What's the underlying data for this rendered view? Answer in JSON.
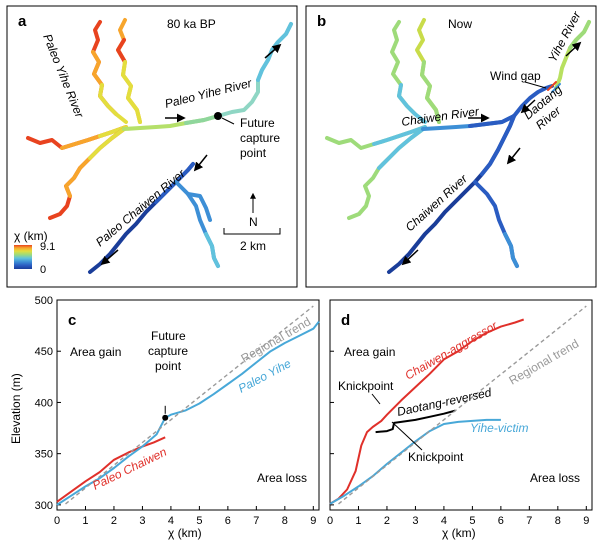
{
  "colors": {
    "scale": [
      "#1a3d99",
      "#2a5cc2",
      "#3d8fd6",
      "#61c2dd",
      "#9edb7a",
      "#e3de3e",
      "#f7a52c",
      "#e8431f"
    ],
    "red": "#e0302a",
    "blue": "#48a8d8",
    "black": "#000000",
    "gray": "#9a9a9a"
  },
  "panel_a": {
    "label": "a",
    "time": "80 ka BP",
    "paleo_yihe_left": "Paleo Yihe River",
    "paleo_yihe_right": "Paleo Yihe River",
    "paleo_chaiwen": "Paleo Chaiwen River",
    "capture": [
      "Future",
      "capture",
      "point"
    ],
    "north": "N",
    "scale": "2 km",
    "legend_title": "χ (km)",
    "legend_max": "9.1",
    "legend_min": "0"
  },
  "panel_b": {
    "label": "b",
    "time": "Now",
    "yihe": "Yihe River",
    "wind_gap": "Wind gap",
    "chaiwen_upper": "Chaiwen River",
    "chaiwen_lower": "Chaiwen River",
    "daotang": [
      "Daotang",
      "River"
    ]
  },
  "chart_data": [
    {
      "type": "line",
      "panel": "c",
      "ylabel": "Elevation (m)",
      "xlabel": "χ (km)",
      "xlim": [
        0,
        9.2
      ],
      "ylim": [
        295,
        500
      ],
      "xticks": [
        "0",
        "1",
        "2",
        "3",
        "4",
        "5",
        "6",
        "7",
        "8",
        "9"
      ],
      "yticks": [
        "300",
        "350",
        "400",
        "450",
        "500"
      ],
      "annotations": {
        "area_gain": "Area gain",
        "area_loss": "Area loss",
        "regional_trend": "Regional trend",
        "capture": [
          "Future",
          "capture",
          "point"
        ]
      },
      "series": [
        {
          "name": "Paleo Chaiwen",
          "color": "red",
          "x": [
            0,
            0.5,
            1.0,
            1.5,
            2.0,
            2.5,
            3.0,
            3.4,
            3.8
          ],
          "y": [
            303,
            313,
            323,
            332,
            344,
            351,
            357,
            361,
            366
          ]
        },
        {
          "name": "Paleo Yihe",
          "color": "blue",
          "x": [
            0,
            0.5,
            1.0,
            1.5,
            2.0,
            2.5,
            3.0,
            3.5,
            3.8,
            4.0,
            4.5,
            5.0,
            5.5,
            6.0,
            6.5,
            7.0,
            7.5,
            8.0,
            8.5,
            9.0,
            9.2
          ],
          "y": [
            300,
            309,
            318,
            326,
            336,
            347,
            357,
            369,
            385,
            388,
            392,
            399,
            408,
            418,
            428,
            439,
            450,
            458,
            465,
            472,
            479
          ]
        },
        {
          "name": "Regional trend",
          "color": "gray",
          "x": [
            0.3,
            9.0
          ],
          "y": [
            301,
            494
          ]
        }
      ],
      "capture_point": {
        "x": 3.8,
        "y": 385
      }
    },
    {
      "type": "line",
      "panel": "d",
      "xlabel": "χ (km)",
      "xlim": [
        0,
        9.2
      ],
      "ylim": [
        295,
        500
      ],
      "xticks": [
        "0",
        "1",
        "2",
        "3",
        "4",
        "5",
        "6",
        "7",
        "8",
        "9"
      ],
      "annotations": {
        "area_gain": "Area gain",
        "area_loss": "Area loss",
        "regional_trend": "Regional trend",
        "knickpoint_top": "Knickpoint",
        "knickpoint_bottom": "Knickpoint"
      },
      "series": [
        {
          "name": "Chaiwen-aggressor",
          "color": "red",
          "x": [
            0,
            0.3,
            0.6,
            0.9,
            1.1,
            1.3,
            1.5,
            1.8,
            2.0,
            2.5,
            3.0,
            3.5,
            4.0,
            4.5,
            5.0,
            5.5,
            6.0,
            6.5,
            6.8
          ],
          "y": [
            301,
            306,
            315,
            333,
            358,
            371,
            376,
            382,
            388,
            402,
            415,
            428,
            442,
            450,
            460,
            468,
            474,
            478,
            481
          ]
        },
        {
          "name": "Daotang-reversed",
          "color": "black",
          "x": [
            1.6,
            2.0,
            2.2,
            2.25,
            2.5,
            3.0,
            3.5,
            4.0,
            4.4
          ],
          "y": [
            371,
            372,
            374,
            380,
            381,
            383,
            386,
            389,
            392
          ]
        },
        {
          "name": "Yihe-victim",
          "color": "blue",
          "x": [
            0,
            0.5,
            1.0,
            1.5,
            2.0,
            2.5,
            3.0,
            3.5,
            4.0,
            4.5,
            5.0,
            5.5,
            6.0
          ],
          "y": [
            301,
            309,
            318,
            328,
            340,
            351,
            362,
            372,
            379,
            381,
            382,
            383,
            383
          ]
        },
        {
          "name": "Regional trend",
          "color": "gray",
          "x": [
            0.3,
            9.0
          ],
          "y": [
            301,
            494
          ]
        }
      ]
    }
  ]
}
